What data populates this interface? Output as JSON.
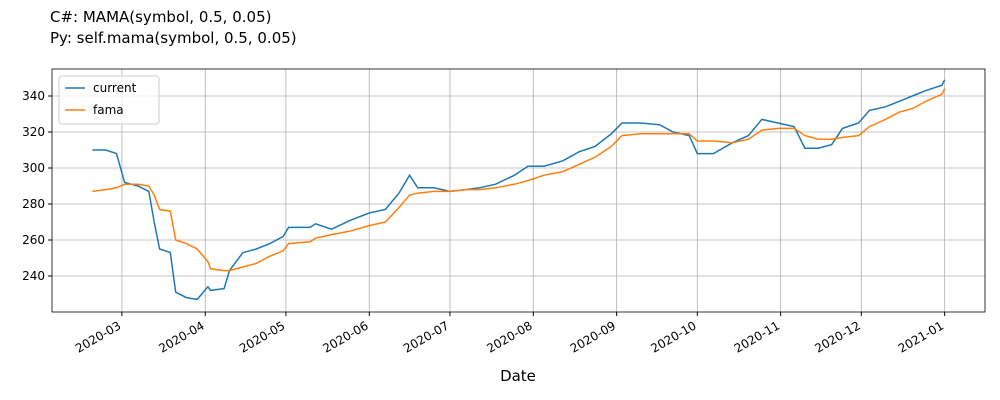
{
  "chart_data": {
    "type": "line",
    "title": "C#: MAMA(symbol, 0.5, 0.05)",
    "subtitle": "Py:  self.mama(symbol, 0.5, 0.05)",
    "x_label": "Date",
    "x": [
      "2020-02-19",
      "2020-02-24",
      "2020-02-28",
      "2020-03-02",
      "2020-03-07",
      "2020-03-11",
      "2020-03-13",
      "2020-03-15",
      "2020-03-19",
      "2020-03-21",
      "2020-03-25",
      "2020-03-29",
      "2020-04-02",
      "2020-04-03",
      "2020-04-08",
      "2020-04-10",
      "2020-04-15",
      "2020-04-20",
      "2020-04-25",
      "2020-04-30",
      "2020-05-02",
      "2020-05-10",
      "2020-05-12",
      "2020-05-18",
      "2020-05-25",
      "2020-06-01",
      "2020-06-07",
      "2020-06-12",
      "2020-06-16",
      "2020-06-19",
      "2020-06-25",
      "2020-07-01",
      "2020-07-07",
      "2020-07-12",
      "2020-07-18",
      "2020-07-25",
      "2020-07-30",
      "2020-08-05",
      "2020-08-12",
      "2020-08-18",
      "2020-08-24",
      "2020-08-30",
      "2020-09-03",
      "2020-09-10",
      "2020-09-17",
      "2020-09-22",
      "2020-09-28",
      "2020-10-01",
      "2020-10-07",
      "2020-10-14",
      "2020-10-20",
      "2020-10-25",
      "2020-10-31",
      "2020-11-06",
      "2020-11-10",
      "2020-11-15",
      "2020-11-20",
      "2020-11-24",
      "2020-11-30",
      "2020-12-04",
      "2020-12-10",
      "2020-12-15",
      "2020-12-20",
      "2020-12-25",
      "2020-12-31",
      "2021-01-01"
    ],
    "series": [
      {
        "name": "current",
        "color": "#1f77b4",
        "values": [
          310,
          310,
          308,
          292,
          290,
          287,
          270,
          255,
          253,
          231,
          228,
          227,
          234,
          232,
          233,
          243,
          253,
          255,
          258,
          262,
          267,
          267,
          269,
          266,
          271,
          275,
          277,
          286,
          296,
          289,
          289,
          287,
          288,
          289,
          291,
          296,
          301,
          301,
          304,
          309,
          312,
          319,
          325,
          325,
          324,
          320,
          318,
          308,
          308,
          314,
          318,
          327,
          325,
          323,
          311,
          311,
          313,
          322,
          325,
          332,
          334,
          337,
          340,
          343,
          346,
          349
        ]
      },
      {
        "name": "fama",
        "color": "#ff7f0e",
        "values": [
          287,
          288,
          289,
          291,
          291,
          290,
          285,
          277,
          276,
          260,
          258,
          255,
          248,
          244,
          243,
          243,
          245,
          247,
          251,
          254,
          258,
          259,
          261,
          263,
          265,
          268,
          270,
          278,
          285,
          286,
          287,
          287,
          288,
          288,
          289,
          291,
          293,
          296,
          298,
          302,
          306,
          312,
          318,
          319,
          319,
          319,
          319,
          315,
          315,
          314,
          316,
          321,
          322,
          322,
          318,
          316,
          316,
          317,
          318,
          323,
          327,
          331,
          333,
          337,
          341,
          344
        ]
      }
    ],
    "xlim": [
      "2020-02-04",
      "2021-01-16"
    ],
    "xticks": [
      "2020-03",
      "2020-04",
      "2020-05",
      "2020-06",
      "2020-07",
      "2020-08",
      "2020-09",
      "2020-10",
      "2020-11",
      "2020-12",
      "2021-01"
    ],
    "ylim": [
      220,
      355
    ],
    "yticks": [
      240,
      260,
      280,
      300,
      320,
      340
    ],
    "grid": true,
    "legend": "upper left"
  }
}
